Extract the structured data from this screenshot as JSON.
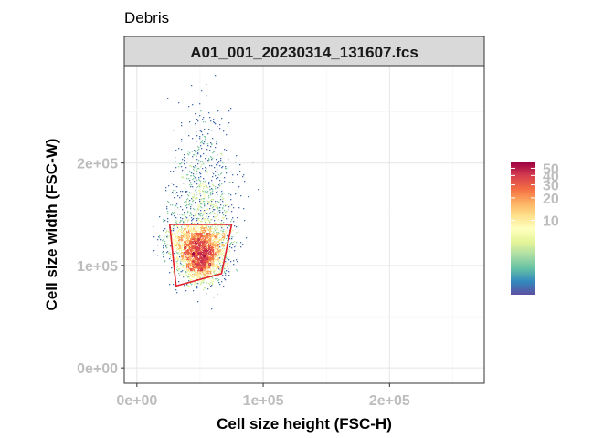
{
  "chart_data": {
    "type": "scatter",
    "title": "Debris",
    "facet_label": "A01_001_20230314_131607.fcs",
    "xlabel": "Cell size height (FSC-H)",
    "ylabel": "Cell size width (FSC-W)",
    "xlim": [
      -10000,
      275000
    ],
    "ylim": [
      -15000,
      295000
    ],
    "x_ticks": [
      0,
      100000,
      200000
    ],
    "x_tick_labels": [
      "0e+00",
      "1e+05",
      "2e+05"
    ],
    "y_ticks": [
      0,
      100000,
      200000
    ],
    "y_tick_labels": [
      "0e+00",
      "1e+05",
      "2e+05"
    ],
    "grid": true,
    "density_clusters": [
      {
        "x": 50000,
        "y": 108000,
        "sx": 9000,
        "sy": 12000,
        "weight": 0.55
      },
      {
        "x": 47000,
        "y": 125000,
        "sx": 13000,
        "sy": 9000,
        "weight": 0.25
      },
      {
        "x": 52000,
        "y": 165000,
        "sx": 12000,
        "sy": 40000,
        "weight": 0.2
      }
    ],
    "gate_polygon": [
      {
        "x": 26000,
        "y": 140000
      },
      {
        "x": 75000,
        "y": 140000
      },
      {
        "x": 67000,
        "y": 92000
      },
      {
        "x": 31000,
        "y": 80000
      }
    ],
    "gate_color": "#e0202a",
    "color_scale": {
      "name": "Spectral",
      "transform": "log",
      "min": 1,
      "max": 60,
      "breaks": [
        10,
        20,
        30,
        40,
        50
      ],
      "break_labels": [
        "10",
        "20",
        "30",
        "40",
        "50"
      ],
      "colors": [
        "#5e4fa2",
        "#3288bd",
        "#66c2a5",
        "#abdda4",
        "#e6f598",
        "#ffffbf",
        "#fee08b",
        "#fdae61",
        "#f46d43",
        "#d53e4f",
        "#9e0142"
      ]
    }
  }
}
